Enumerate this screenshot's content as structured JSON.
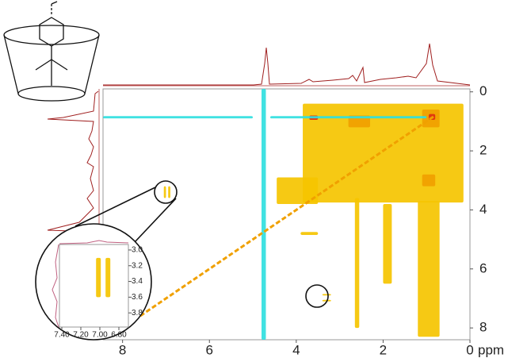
{
  "chart_data": [
    {
      "type": "contour2d",
      "x_label": "ppm",
      "xlim": [
        8.45,
        0
      ],
      "ylim": [
        -0.1,
        8.4
      ],
      "xticks": [
        8,
        6,
        4,
        2,
        0
      ],
      "yticks": [
        0,
        2,
        4,
        6,
        8
      ],
      "regions": [
        {
          "color": "#f5c400",
          "x": [
            3.85,
            0.15
          ],
          "y": [
            0.4,
            3.75
          ]
        },
        {
          "color": "#f5c400",
          "x": [
            4.45,
            3.5
          ],
          "y": [
            2.9,
            3.8
          ]
        },
        {
          "color": "#f5c400",
          "x": [
            1.2,
            0.7
          ],
          "y": [
            3.7,
            8.3
          ]
        },
        {
          "color": "#f5c400",
          "x": [
            2.65,
            2.55
          ],
          "y": [
            3.6,
            8.0
          ]
        },
        {
          "color": "#f5c400",
          "x": [
            3.4,
            3.2
          ],
          "y": [
            6.85,
            6.9
          ]
        },
        {
          "color": "#f5c400",
          "x": [
            3.4,
            3.2
          ],
          "y": [
            7.05,
            7.1
          ]
        },
        {
          "color": "#f5c400",
          "x": [
            7.05,
            7.0
          ],
          "y": [
            3.2,
            3.6
          ]
        },
        {
          "color": "#f5c400",
          "x": [
            6.95,
            6.9
          ],
          "y": [
            3.2,
            3.6
          ]
        },
        {
          "color": "#f5c400",
          "x": [
            3.9,
            3.5
          ],
          "y": [
            4.75,
            4.85
          ]
        },
        {
          "color": "#f5c400",
          "x": [
            2.0,
            1.8
          ],
          "y": [
            3.8,
            6.5
          ]
        },
        {
          "color": "#f0a000",
          "x": [
            2.8,
            2.3
          ],
          "y": [
            0.8,
            1.2
          ]
        },
        {
          "color": "#f0a000",
          "x": [
            1.1,
            0.7
          ],
          "y": [
            0.6,
            1.2
          ]
        },
        {
          "color": "#f0a000",
          "x": [
            1.1,
            0.8
          ],
          "y": [
            2.8,
            3.2
          ]
        },
        {
          "color": "#e03010",
          "x": [
            0.95,
            0.8
          ],
          "y": [
            0.75,
            0.95
          ]
        },
        {
          "color": "#e03010",
          "x": [
            3.7,
            3.5
          ],
          "y": [
            0.8,
            0.95
          ]
        },
        {
          "color": "#30e0e0",
          "x": [
            4.8,
            4.7
          ],
          "y": [
            -0.1,
            8.4
          ]
        },
        {
          "color": "#30e0e0",
          "x": [
            8.45,
            5.0
          ],
          "y": [
            0.82,
            0.9
          ]
        },
        {
          "color": "#30e0e0",
          "x": [
            4.6,
            1.0
          ],
          "y": [
            0.82,
            0.9
          ]
        }
      ],
      "diagonal": {
        "color": "#f0a000",
        "x": [
          8.0,
          0.8
        ],
        "y": [
          8.0,
          0.8
        ]
      }
    },
    {
      "type": "contour2d",
      "xlim": [
        7.425,
        6.7
      ],
      "ylim": [
        2.93,
        3.98
      ],
      "xticks": [
        {
          "value": 7.4,
          "label": "7.40"
        },
        {
          "value": 7.2,
          "label": "7.20"
        },
        {
          "value": 7.0,
          "label": "7.00"
        },
        {
          "value": 6.8,
          "label": "6.80"
        }
      ],
      "yticks": [
        {
          "value": 3.0,
          "label": "3.0"
        },
        3.2,
        3.4,
        3.6,
        3.8
      ],
      "regions": [
        {
          "color": "#f5c400",
          "x": [
            7.04,
            6.99
          ],
          "y": [
            3.1,
            3.6
          ]
        },
        {
          "color": "#f5c400",
          "x": [
            6.94,
            6.89
          ],
          "y": [
            3.1,
            3.6
          ]
        }
      ]
    }
  ]
}
